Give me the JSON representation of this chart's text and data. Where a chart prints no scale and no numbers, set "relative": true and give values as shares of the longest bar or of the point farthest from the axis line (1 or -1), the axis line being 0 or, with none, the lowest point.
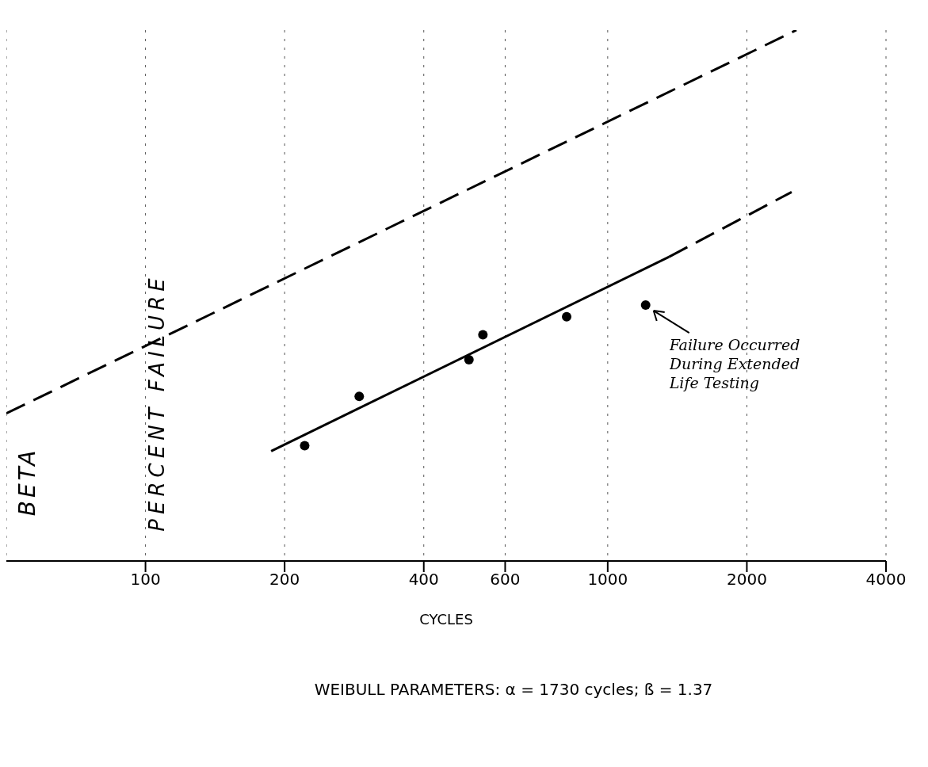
{
  "chart_data": {
    "type": "scatter",
    "xlabel": "CYCLES",
    "ylabel": "PERCENT FAILURE",
    "relative": true,
    "log": "x",
    "grid": "x",
    "xlim": [
      50,
      4000
    ],
    "xticks": [
      100,
      200,
      400,
      600,
      1000,
      2000,
      4000
    ],
    "series": [
      {
        "color": "#000000",
        "marker": "circle",
        "x": [
          221,
          290,
          501,
          537,
          815
        ],
        "values": [
          0.217,
          0.31,
          0.379,
          0.426,
          0.46
        ]
      },
      {
        "color": "#000000",
        "marker": "circle",
        "x": [
          1208
        ],
        "values": [
          0.482
        ]
      },
      {
        "type": "line",
        "color": "#000000",
        "marker": "none",
        "line_style": "solid",
        "x": [
          187,
          1358
        ],
        "values": [
          0.207,
          0.573
        ]
      },
      {
        "type": "line",
        "color": "#000000",
        "marker": "none",
        "line_style": "dashed",
        "x": [
          1358,
          2500
        ],
        "values": [
          0.573,
          0.695
        ]
      },
      {
        "type": "line",
        "color": "#000000",
        "marker": "none",
        "line_style": "dashed",
        "x": [
          50,
          2560
        ],
        "values": [
          0.278,
          1
        ]
      }
    ],
    "annotations": [
      {
        "text": "Failure Occurred During Extended Life Testing",
        "x": 1208,
        "y": 0.482
      },
      "BETA",
      "WEIBULL PARAMETERS:  α = 1730 cycles; ß = 1.37"
    ]
  }
}
